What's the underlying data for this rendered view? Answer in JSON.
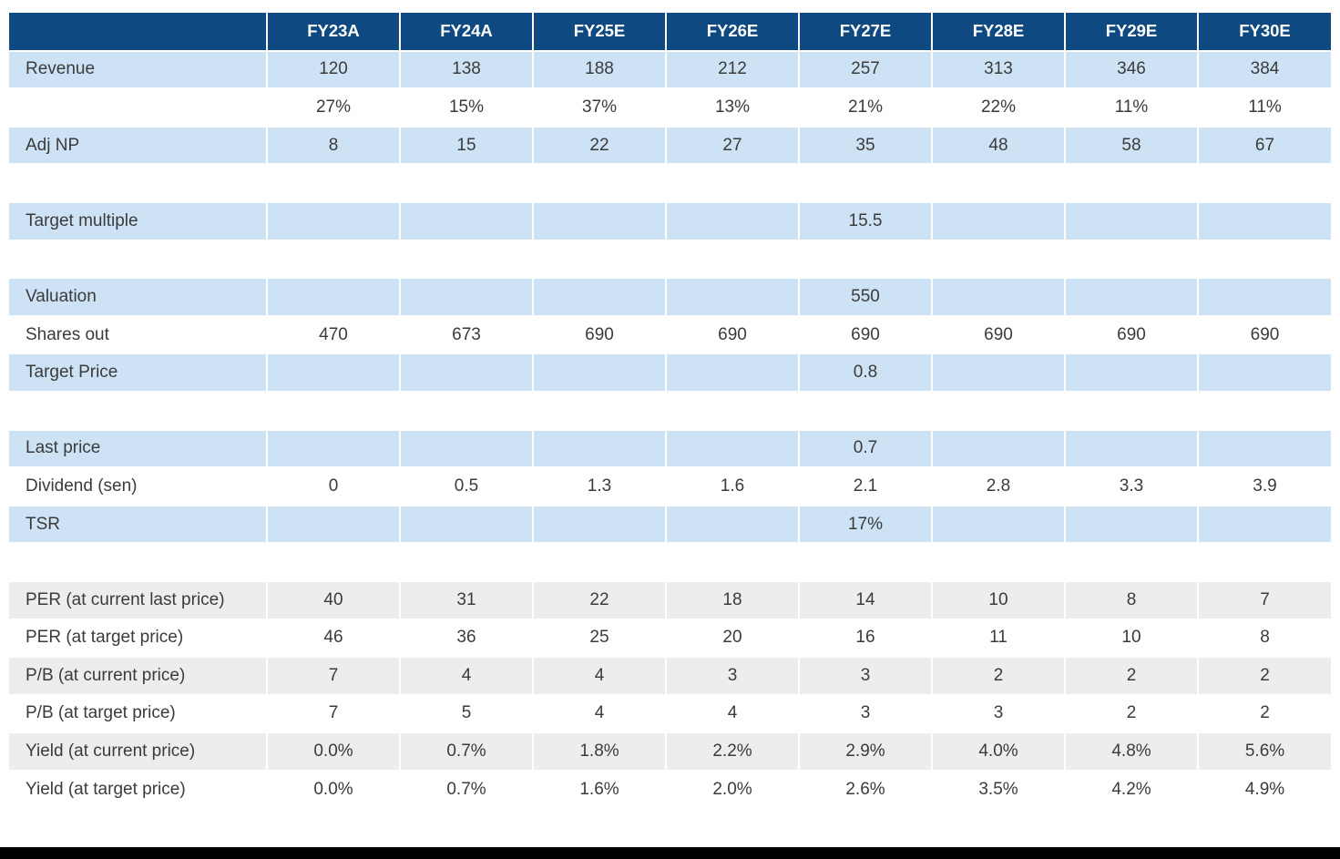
{
  "colors": {
    "header_background": "#0e4a81",
    "header_text": "#ffffff",
    "highlight_row_background": "#cde3f5",
    "ratio_row_background": "#ededed",
    "body_text": "#3b3b3b",
    "bottom_rule": "#000000"
  },
  "table": {
    "corner_label": "",
    "columns": [
      "FY23A",
      "FY24A",
      "FY25E",
      "FY26E",
      "FY27E",
      "FY28E",
      "FY29E",
      "FY30E"
    ],
    "rows": [
      {
        "label": "Revenue",
        "style": "blue",
        "values": [
          "120",
          "138",
          "188",
          "212",
          "257",
          "313",
          "346",
          "384"
        ]
      },
      {
        "label": "",
        "style": "white",
        "values": [
          "27%",
          "15%",
          "37%",
          "13%",
          "21%",
          "22%",
          "11%",
          "11%"
        ]
      },
      {
        "label": "Adj NP",
        "style": "blue",
        "values": [
          "8",
          "15",
          "22",
          "27",
          "35",
          "48",
          "58",
          "67"
        ]
      },
      {
        "label": "",
        "style": "spacer",
        "values": [
          "",
          "",
          "",
          "",
          "",
          "",
          "",
          ""
        ]
      },
      {
        "label": "Target multiple",
        "style": "blue",
        "values": [
          "",
          "",
          "",
          "",
          "15.5",
          "",
          "",
          ""
        ]
      },
      {
        "label": "",
        "style": "spacer",
        "values": [
          "",
          "",
          "",
          "",
          "",
          "",
          "",
          ""
        ]
      },
      {
        "label": "Valuation",
        "style": "blue",
        "values": [
          "",
          "",
          "",
          "",
          "550",
          "",
          "",
          ""
        ]
      },
      {
        "label": "Shares out",
        "style": "white",
        "values": [
          "470",
          "673",
          "690",
          "690",
          "690",
          "690",
          "690",
          "690"
        ]
      },
      {
        "label": "Target Price",
        "style": "blue",
        "values": [
          "",
          "",
          "",
          "",
          "0.8",
          "",
          "",
          ""
        ]
      },
      {
        "label": "",
        "style": "spacer",
        "values": [
          "",
          "",
          "",
          "",
          "",
          "",
          "",
          ""
        ]
      },
      {
        "label": "Last price",
        "style": "blue",
        "values": [
          "",
          "",
          "",
          "",
          "0.7",
          "",
          "",
          ""
        ]
      },
      {
        "label": "Dividend (sen)",
        "style": "white",
        "values": [
          "0",
          "0.5",
          "1.3",
          "1.6",
          "2.1",
          "2.8",
          "3.3",
          "3.9"
        ]
      },
      {
        "label": "TSR",
        "style": "blue",
        "values": [
          "",
          "",
          "",
          "",
          "17%",
          "",
          "",
          ""
        ]
      },
      {
        "label": "",
        "style": "spacer",
        "values": [
          "",
          "",
          "",
          "",
          "",
          "",
          "",
          ""
        ]
      },
      {
        "label": "PER (at current last price)",
        "style": "gray",
        "values": [
          "40",
          "31",
          "22",
          "18",
          "14",
          "10",
          "8",
          "7"
        ]
      },
      {
        "label": "PER (at target price)",
        "style": "white",
        "values": [
          "46",
          "36",
          "25",
          "20",
          "16",
          "11",
          "10",
          "8"
        ]
      },
      {
        "label": "P/B (at current price)",
        "style": "gray",
        "values": [
          "7",
          "4",
          "4",
          "3",
          "3",
          "2",
          "2",
          "2"
        ]
      },
      {
        "label": "P/B (at target price)",
        "style": "white",
        "values": [
          "7",
          "5",
          "4",
          "4",
          "3",
          "3",
          "2",
          "2"
        ]
      },
      {
        "label": "Yield (at current price)",
        "style": "gray",
        "values": [
          "0.0%",
          "0.7%",
          "1.8%",
          "2.2%",
          "2.9%",
          "4.0%",
          "4.8%",
          "5.6%"
        ]
      },
      {
        "label": "Yield (at target price)",
        "style": "white",
        "values": [
          "0.0%",
          "0.7%",
          "1.6%",
          "2.0%",
          "2.6%",
          "3.5%",
          "4.2%",
          "4.9%"
        ]
      }
    ]
  }
}
